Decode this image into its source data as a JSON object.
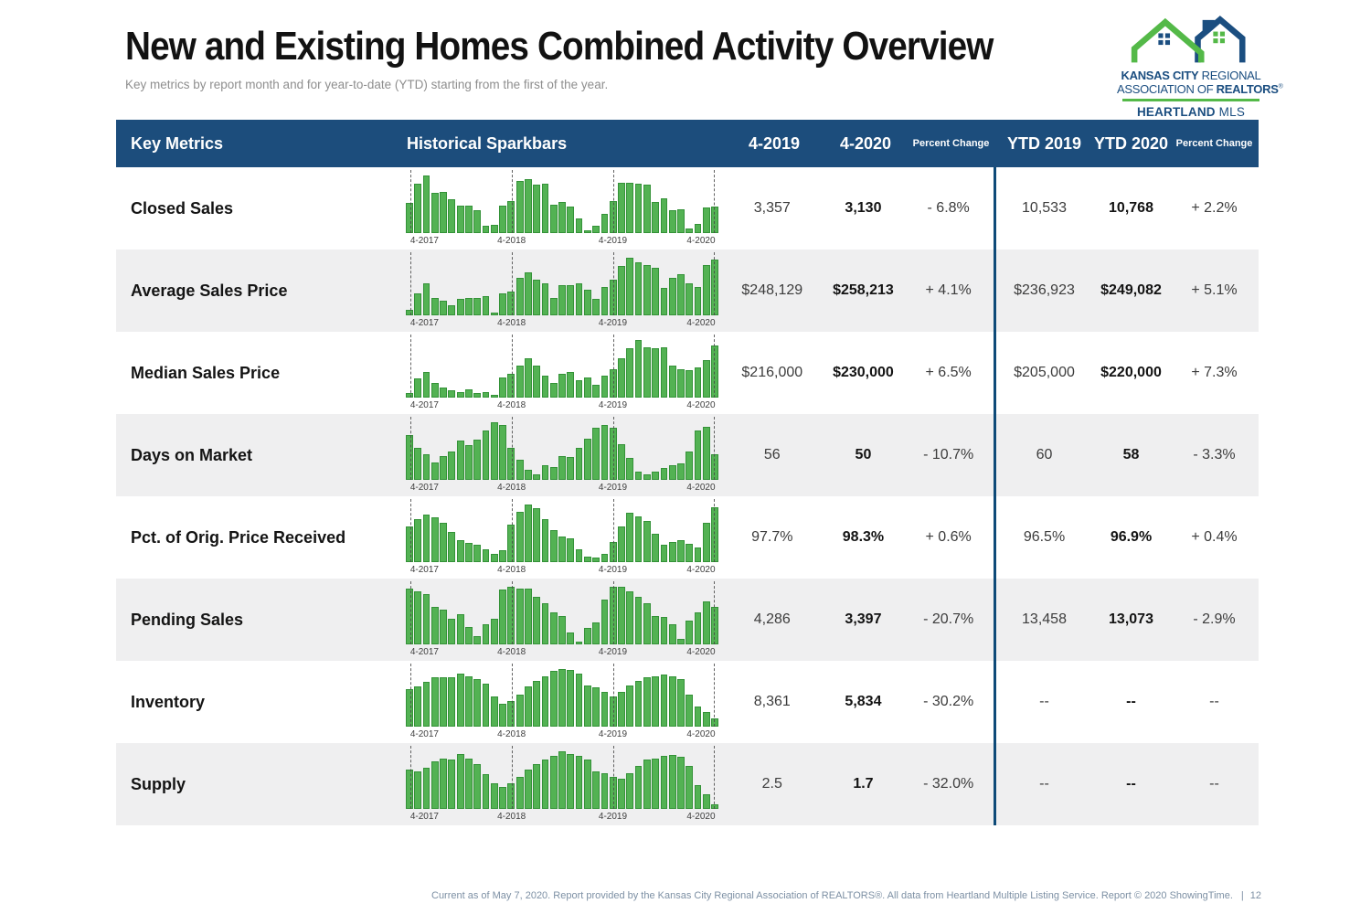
{
  "page": {
    "title": "New and Existing Homes Combined Activity Overview",
    "subtitle": "Key metrics by report month and for year-to-date (YTD) starting from the first of the year.",
    "footer": "Current as of May 7, 2020. Report provided by the Kansas City Regional Association of REALTORS®. All data from Heartland Multiple Listing Service. Report © 2020 ShowingTime.",
    "page_number": "12"
  },
  "logo": {
    "line1_bold": "KANSAS CITY",
    "line1_light": " REGIONAL",
    "line2_light": "ASSOCIATION OF ",
    "line2_bold": "REALTORS",
    "registered": "®",
    "line3_bold": "HEARTLAND",
    "line3_light": " MLS"
  },
  "colors": {
    "header_blue": "#1c4d7c",
    "divider_blue": "#0e4a78",
    "bar_green": "#53b253",
    "bar_green_border": "#349238",
    "logo_blue": "#1b4e80",
    "logo_green": "#54b948",
    "row_alt_gray": "#efeff0",
    "footer_gray_blue": "#7d90a4"
  },
  "table": {
    "headers": {
      "metrics": "Key Metrics",
      "sparkbars": "Historical Sparkbars",
      "month_2019": "4-2019",
      "month_2020": "4-2020",
      "pct_change_month": "Percent Change",
      "ytd_2019": "YTD 2019",
      "ytd_2020": "YTD 2020",
      "pct_change_ytd": "Percent Change"
    },
    "spark_ticks": [
      "4-2017",
      "4-2018",
      "4-2019",
      "4-2020"
    ],
    "rows": [
      {
        "label": "Closed Sales",
        "month_2019": "3,357",
        "month_2020": "3,130",
        "month_change": "- 6.8%",
        "ytd_2019": "10,533",
        "ytd_2020": "10,768",
        "ytd_change": "+ 2.2%",
        "spark": [
          52,
          85,
          100,
          70,
          72,
          58,
          48,
          47,
          40,
          13,
          14,
          48,
          55,
          90,
          93,
          84,
          86,
          50,
          54,
          46,
          25,
          4,
          12,
          34,
          55,
          88,
          88,
          85,
          84,
          54,
          60,
          40,
          42,
          8,
          16,
          44,
          46
        ]
      },
      {
        "label": "Average Sales Price",
        "month_2019": "$248,129",
        "month_2020": "$258,213",
        "month_change": "+ 4.1%",
        "ytd_2019": "$236,923",
        "ytd_2020": "$249,082",
        "ytd_change": "+ 5.1%",
        "spark": [
          10,
          38,
          55,
          30,
          25,
          18,
          28,
          30,
          30,
          33,
          4,
          38,
          42,
          65,
          75,
          62,
          55,
          30,
          52,
          52,
          55,
          45,
          28,
          50,
          62,
          85,
          100,
          92,
          88,
          82,
          48,
          65,
          72,
          55,
          50,
          88,
          97
        ]
      },
      {
        "label": "Median Sales Price",
        "month_2019": "$216,000",
        "month_2020": "$230,000",
        "month_change": "+ 6.5%",
        "ytd_2019": "$205,000",
        "ytd_2020": "$220,000",
        "ytd_change": "+ 7.3%",
        "spark": [
          8,
          33,
          45,
          25,
          18,
          13,
          10,
          15,
          8,
          10,
          5,
          35,
          42,
          55,
          68,
          55,
          38,
          25,
          42,
          45,
          30,
          35,
          22,
          38,
          50,
          68,
          85,
          100,
          88,
          85,
          88,
          55,
          50,
          48,
          53,
          65,
          90
        ]
      },
      {
        "label": "Days on Market",
        "month_2019": "56",
        "month_2020": "50",
        "month_change": "- 10.7%",
        "ytd_2019": "60",
        "ytd_2020": "58",
        "ytd_change": "- 3.3%",
        "spark": [
          78,
          55,
          45,
          30,
          42,
          50,
          68,
          60,
          70,
          85,
          100,
          95,
          55,
          35,
          18,
          10,
          25,
          22,
          42,
          40,
          55,
          72,
          90,
          95,
          90,
          62,
          38,
          15,
          10,
          15,
          20,
          25,
          28,
          50,
          85,
          92,
          45
        ]
      },
      {
        "label": "Pct. of Orig. Price Received",
        "month_2019": "97.7%",
        "month_2020": "98.3%",
        "month_change": "+ 0.6%",
        "ytd_2019": "96.5%",
        "ytd_2020": "96.9%",
        "ytd_change": "+ 0.4%",
        "spark": [
          62,
          75,
          82,
          78,
          68,
          52,
          38,
          33,
          30,
          22,
          15,
          20,
          65,
          88,
          100,
          93,
          75,
          55,
          45,
          42,
          22,
          10,
          8,
          15,
          35,
          62,
          85,
          80,
          72,
          50,
          30,
          35,
          38,
          32,
          25,
          68,
          95
        ]
      },
      {
        "label": "Pending Sales",
        "month_2019": "4,286",
        "month_2020": "3,397",
        "month_change": "- 20.7%",
        "ytd_2019": "13,458",
        "ytd_2020": "13,073",
        "ytd_change": "- 2.9%",
        "spark": [
          97,
          92,
          88,
          65,
          60,
          45,
          52,
          30,
          15,
          35,
          45,
          95,
          100,
          97,
          97,
          82,
          72,
          55,
          50,
          20,
          5,
          28,
          38,
          78,
          100,
          100,
          92,
          82,
          72,
          50,
          47,
          35,
          10,
          42,
          55,
          75,
          65
        ]
      },
      {
        "label": "Inventory",
        "month_2019": "8,361",
        "month_2020": "5,834",
        "month_change": "- 30.2%",
        "ytd_2019": "--",
        "ytd_2020": "--",
        "ytd_change": "--",
        "spark": [
          65,
          70,
          78,
          85,
          85,
          85,
          92,
          88,
          82,
          75,
          52,
          40,
          45,
          55,
          70,
          80,
          88,
          97,
          100,
          98,
          92,
          72,
          68,
          60,
          52,
          60,
          72,
          80,
          85,
          88,
          90,
          88,
          82,
          55,
          35,
          25,
          15
        ]
      },
      {
        "label": "Supply",
        "month_2019": "2.5",
        "month_2020": "1.7",
        "month_change": "- 32.0%",
        "ytd_2019": "--",
        "ytd_2020": "--",
        "ytd_change": "--",
        "spark": [
          68,
          65,
          72,
          82,
          88,
          85,
          95,
          88,
          78,
          60,
          45,
          38,
          45,
          55,
          68,
          78,
          85,
          92,
          100,
          95,
          92,
          85,
          65,
          62,
          55,
          52,
          62,
          75,
          85,
          88,
          92,
          93,
          90,
          75,
          42,
          25,
          8
        ]
      }
    ]
  }
}
